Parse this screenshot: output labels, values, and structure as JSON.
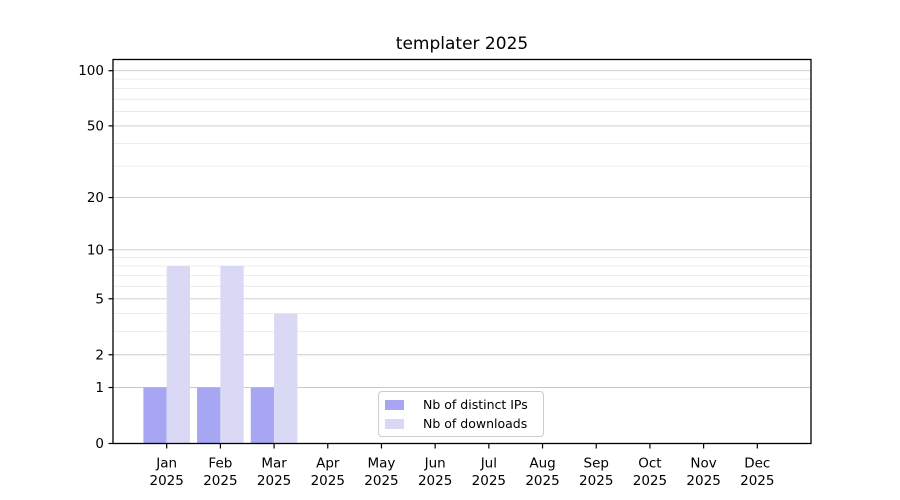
{
  "chart_data": {
    "type": "bar",
    "title": "templater 2025",
    "categories": [
      "Jan",
      "Feb",
      "Mar",
      "Apr",
      "May",
      "Jun",
      "Jul",
      "Aug",
      "Sep",
      "Oct",
      "Nov",
      "Dec"
    ],
    "category_year": "2025",
    "series": [
      {
        "name": "Nb of distinct IPs",
        "color": "#a6a6f2",
        "values": [
          1,
          1,
          1,
          0,
          0,
          0,
          0,
          0,
          0,
          0,
          0,
          0
        ]
      },
      {
        "name": "Nb of downloads",
        "color": "#d9d9f6",
        "values": [
          8,
          8,
          4,
          0,
          0,
          0,
          0,
          0,
          0,
          0,
          0,
          0
        ]
      }
    ],
    "yaxis": {
      "scale": "log1p",
      "ticks": [
        0,
        1,
        2,
        5,
        10,
        20,
        50,
        100
      ],
      "minor_ticks": [
        3,
        4,
        6,
        7,
        8,
        9,
        30,
        40,
        60,
        70,
        80,
        90
      ],
      "ylim": [
        0,
        115
      ]
    },
    "xlabel": "",
    "ylabel": "",
    "grid": true,
    "legend_position": "lower center"
  },
  "colors": {
    "background": "#ffffff",
    "axis": "#000000",
    "major_grid": "#c9c9c9",
    "minor_grid": "#e7e7e7",
    "legend_border": "#cccccc",
    "text": "#000000"
  }
}
